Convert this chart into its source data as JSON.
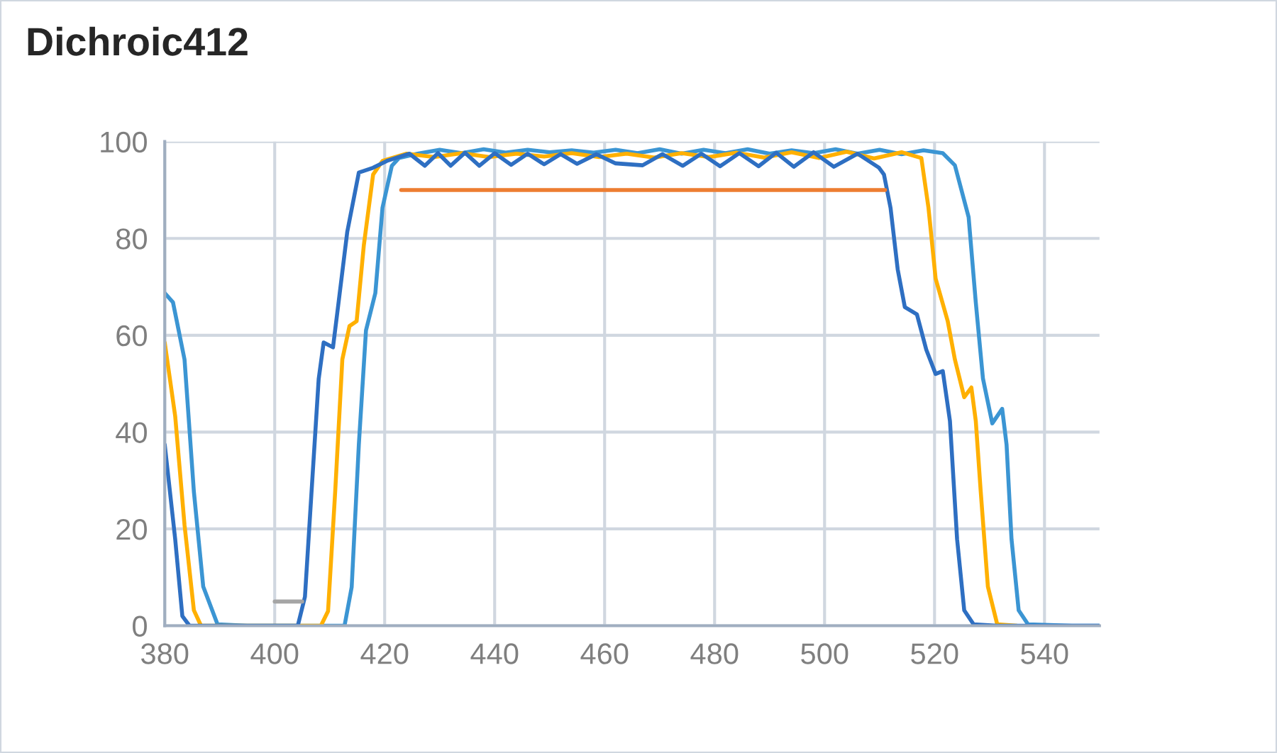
{
  "chart_data": {
    "type": "line",
    "title": "Dichroic412",
    "xlim": [
      380,
      550
    ],
    "xticks": [
      380,
      400,
      420,
      440,
      460,
      480,
      500,
      520,
      540
    ],
    "ylim": [
      0,
      100
    ],
    "yticks": [
      0,
      20,
      40,
      60,
      80,
      100
    ],
    "grid": true,
    "legend": false,
    "marker": "none",
    "line_style": "solid",
    "series": [
      {
        "color": "#3b95d3",
        "x": [
          380,
          381.5,
          383.6,
          385.3,
          387,
          389.6,
          395,
          405,
          412.7,
          414,
          415.3,
          416.6,
          418.3,
          419.6,
          421.3,
          422.6,
          426,
          430,
          434,
          438,
          442,
          446,
          450,
          454,
          458,
          462,
          466,
          470,
          474,
          478,
          482,
          486,
          490,
          494,
          498,
          502,
          506,
          510,
          514,
          518,
          521.5,
          523.7,
          526.2,
          527.5,
          528.8,
          530.5,
          532.3,
          533.1,
          534,
          535.3,
          537,
          545,
          550
        ],
        "values": [
          68.7,
          66.8,
          55,
          27.7,
          8.1,
          0.3,
          0,
          0,
          0,
          8,
          37.4,
          61,
          68.7,
          86.3,
          95,
          96.6,
          97.5,
          98.3,
          97.6,
          98.4,
          97.7,
          98.3,
          97.8,
          98.2,
          97.7,
          98.3,
          97.6,
          98.4,
          97.5,
          98.3,
          97.6,
          98.4,
          97.5,
          98.2,
          97.6,
          98.4,
          97.5,
          98.3,
          97.4,
          98.2,
          97.6,
          95.1,
          84.4,
          66.8,
          51.1,
          41.8,
          44.8,
          37.4,
          17.9,
          3.2,
          0.3,
          0,
          0
        ]
      },
      {
        "color": "#ffb000",
        "x": [
          380,
          381.9,
          383.6,
          385.3,
          386.6,
          395,
          405,
          408.4,
          409.7,
          411,
          412.3,
          413.6,
          414.9,
          416.2,
          417.9,
          419.6,
          424,
          429,
          434,
          439,
          444,
          449,
          454,
          459,
          464,
          469,
          474,
          479,
          484,
          489,
          494,
          499,
          504,
          509,
          514,
          517.6,
          518.9,
          520.2,
          522.4,
          523.7,
          525.4,
          526.7,
          527.5,
          528.4,
          529.7,
          531.4,
          535
        ],
        "values": [
          58.5,
          43.3,
          20.8,
          3.2,
          0,
          0,
          0,
          0,
          3,
          27.7,
          55,
          61.9,
          62.9,
          78.5,
          93.2,
          96,
          97.5,
          96.8,
          97.6,
          96.8,
          97.5,
          96.9,
          97.6,
          96.8,
          97.5,
          96.7,
          97.6,
          96.8,
          97.7,
          96.7,
          97.8,
          96.6,
          97.9,
          96.5,
          97.8,
          96.6,
          86.3,
          71.7,
          62.9,
          55,
          47.2,
          49.2,
          42.3,
          27.7,
          8.1,
          0.3,
          0
        ]
      },
      {
        "color": "#2e6fc2",
        "x": [
          380,
          381.9,
          383.2,
          384.5,
          390,
          398,
          404.2,
          405.5,
          406.7,
          408,
          408.9,
          410.6,
          411.4,
          413.2,
          415.3,
          417.9,
          420.4,
          424.5,
          427.3,
          429.7,
          432,
          434.6,
          437.2,
          440,
          443,
          446,
          449,
          452,
          455,
          458.5,
          462,
          466.9,
          470.5,
          474.2,
          477.6,
          481,
          484.5,
          488,
          491.2,
          494.4,
          498,
          501.7,
          506,
          509.9,
          510.8,
          512,
          513.3,
          514.6,
          516.8,
          518.5,
          520.2,
          521.5,
          522.8,
          524.1,
          525.4,
          527.1,
          531.4,
          540,
          550
        ],
        "values": [
          37.4,
          17.9,
          2,
          0,
          0,
          0,
          0,
          6,
          27.7,
          51,
          58.5,
          57.5,
          64.8,
          81.4,
          93.6,
          94.6,
          96,
          97.5,
          95,
          97.6,
          95,
          97.7,
          95,
          97.6,
          95.2,
          97.5,
          95.3,
          97.4,
          95.4,
          97.4,
          95.5,
          95.1,
          97.4,
          95,
          97.5,
          94.9,
          97.6,
          94.9,
          97.7,
          94.8,
          97.8,
          94.8,
          97.5,
          94.6,
          93.2,
          86.3,
          73.6,
          65.8,
          64.3,
          57,
          52,
          52.6,
          42.3,
          17.9,
          3.2,
          0.3,
          0,
          0,
          0
        ]
      },
      {
        "color": "#a5a5a5",
        "x": [
          400,
          405
        ],
        "values": [
          5,
          5
        ]
      },
      {
        "color": "#ed7d31",
        "x": [
          423,
          511
        ],
        "values": [
          90,
          90
        ]
      }
    ]
  }
}
